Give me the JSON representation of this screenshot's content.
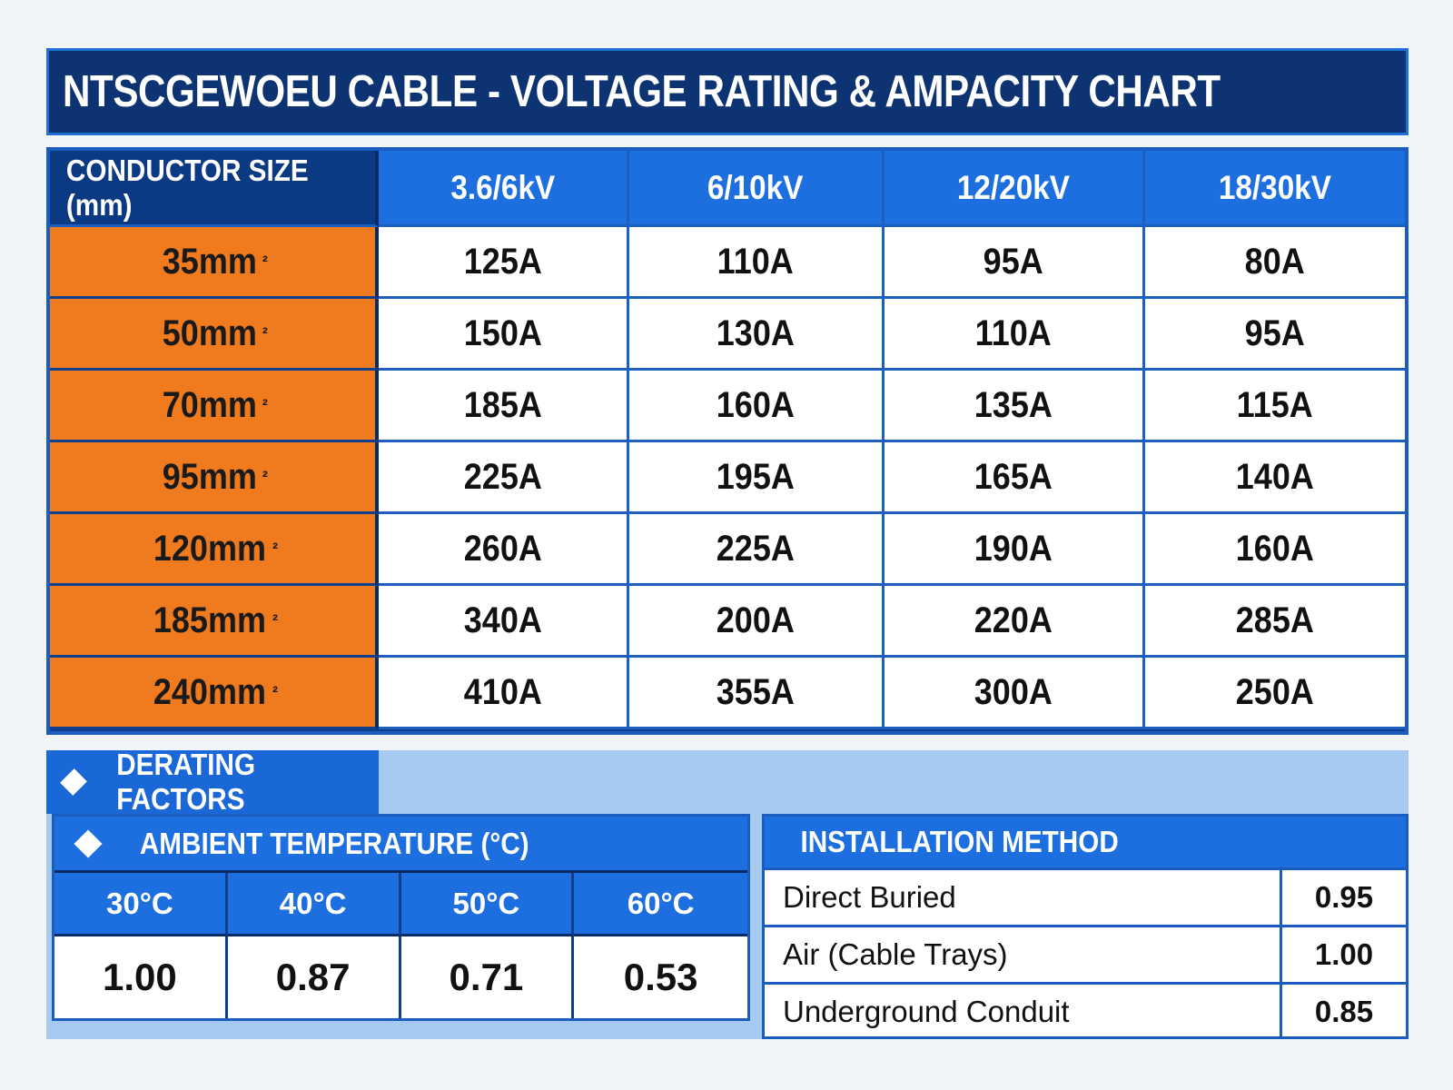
{
  "title": "NTSCGEWOEU CABLE - VOLTAGE RATING & AMPACITY CHART",
  "icons": {
    "title_icon": "table-icon",
    "section_bullet": "diamond-icon"
  },
  "colors": {
    "title_bg": "#0d3372",
    "header_blue": "#1d6fe0",
    "size_orange": "#f07a1e",
    "panel_light_blue": "#a6c9f0"
  },
  "chart_data": {
    "type": "table",
    "title": "NTSCGEWOEU CABLE - VOLTAGE RATING & AMPACITY CHART",
    "row_header_label": "CONDUCTOR SIZE (mm)",
    "columns": [
      "3.6/6kV",
      "6/10kV",
      "12/20kV",
      "18/30kV"
    ],
    "rows": [
      {
        "size": "35mm",
        "values": [
          "125A",
          "110A",
          "95A",
          "80A"
        ]
      },
      {
        "size": "50mm",
        "values": [
          "150A",
          "130A",
          "110A",
          "95A"
        ]
      },
      {
        "size": "70mm",
        "values": [
          "185A",
          "160A",
          "135A",
          "115A"
        ]
      },
      {
        "size": "95mm",
        "values": [
          "225A",
          "195A",
          "165A",
          "140A"
        ]
      },
      {
        "size": "120mm",
        "values": [
          "260A",
          "225A",
          "190A",
          "160A"
        ]
      },
      {
        "size": "185mm",
        "values": [
          "340A",
          "200A",
          "220A",
          "285A"
        ]
      },
      {
        "size": "240mm",
        "values": [
          "410A",
          "355A",
          "300A",
          "250A"
        ]
      }
    ],
    "size_superscript": "²",
    "derating": {
      "label": "DERATING FACTORS",
      "ambient": {
        "label": "AMBIENT TEMPERATURE (°C)",
        "temperatures": [
          "30°C",
          "40°C",
          "50°C",
          "60°C"
        ],
        "factors": [
          "1.00",
          "0.87",
          "0.71",
          "0.53"
        ]
      },
      "installation": {
        "label": "INSTALLATION METHOD",
        "methods": [
          {
            "name": "Direct Buried",
            "factor": "0.95"
          },
          {
            "name": "Air (Cable Trays)",
            "factor": "1.00"
          },
          {
            "name": "Underground Conduit",
            "factor": "0.85"
          }
        ]
      }
    }
  }
}
